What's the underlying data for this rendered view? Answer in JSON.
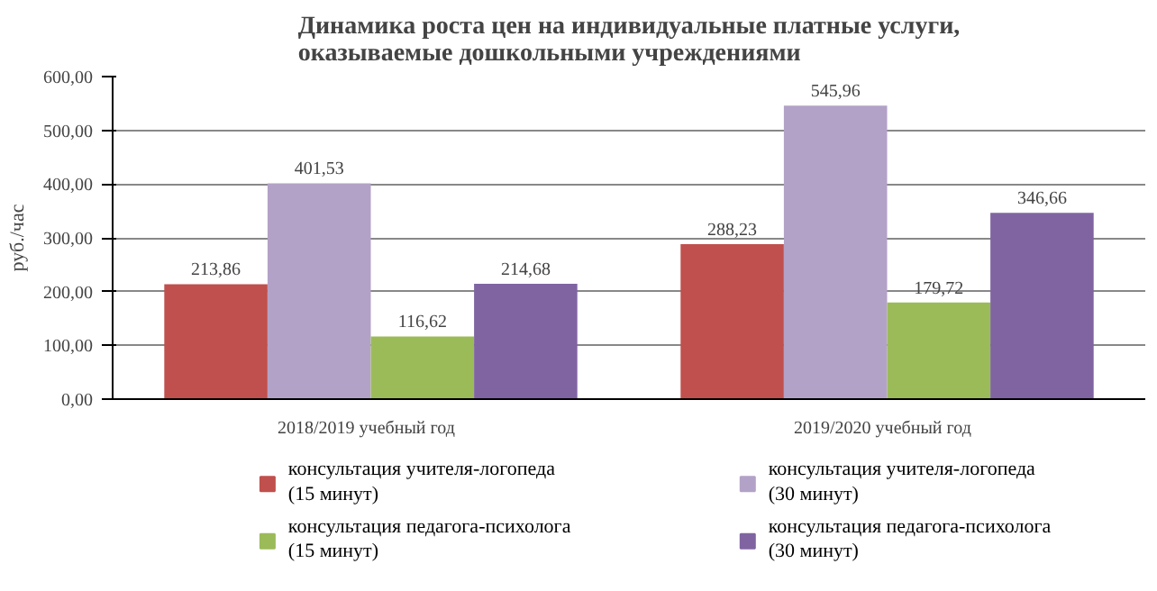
{
  "chart_data": {
    "type": "bar",
    "title": "Динамика роста цен на индивидуальные платные услуги,\nоказываемые дошкольными учреждениями",
    "ylabel": "руб./час",
    "categories": [
      "2018/2019   учебный год",
      "2019/2020   учебный год"
    ],
    "series": [
      {
        "name": "консультация  учителя-логопеда\n(15 минут)",
        "color": "#c0504d",
        "values": [
          213.86,
          288.23
        ],
        "value_labels": [
          "213,86",
          "288,23"
        ]
      },
      {
        "name": "консультация  учителя-логопеда\n(30 минут)",
        "color": "#b3a2c7",
        "values": [
          401.53,
          545.96
        ],
        "value_labels": [
          "401,53",
          "545,96"
        ]
      },
      {
        "name": "консультация  педагога-психолога\n(15 минут)",
        "color": "#9bbb59",
        "values": [
          116.62,
          179.72
        ],
        "value_labels": [
          "116,62",
          "179,72"
        ]
      },
      {
        "name": "консультация  педагога-психолога\n(30 минут)",
        "color": "#8064a2",
        "values": [
          214.68,
          346.66
        ],
        "value_labels": [
          "214,68",
          "346,66"
        ]
      }
    ],
    "ylim": [
      0,
      600
    ],
    "yticks": [
      {
        "value": 0,
        "label": "0,00"
      },
      {
        "value": 100,
        "label": "100,00"
      },
      {
        "value": 200,
        "label": "200,00"
      },
      {
        "value": 300,
        "label": "300,00"
      },
      {
        "value": 400,
        "label": "400,00"
      },
      {
        "value": 500,
        "label": "500,00"
      },
      {
        "value": 600,
        "label": "600,00"
      }
    ],
    "grid": "y",
    "legend": "bottom"
  }
}
